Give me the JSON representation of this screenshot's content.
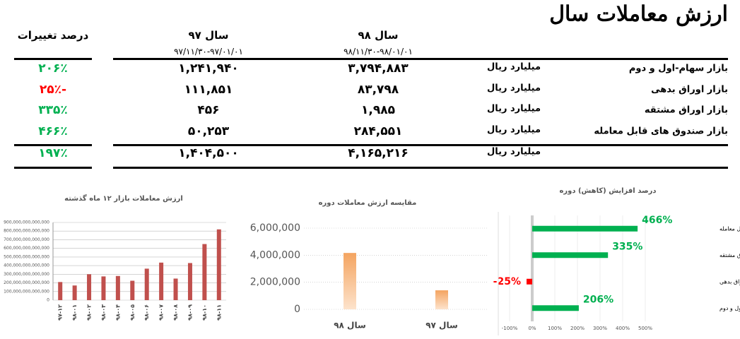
{
  "title": "ارزش معاملات سال",
  "table": {
    "headers": [
      {
        "label": "سال ۹۸",
        "range": "۹۸/۱۱/۳۰-۹۸/۰۱/۰۱"
      },
      {
        "label": "سال ۹۷",
        "range": "۹۷/۱۱/۳۰-۹۷/۰۱/۰۱"
      },
      {
        "label": "درصد تغییرات"
      }
    ],
    "rows": [
      {
        "market": "بازار سهام-اول و دوم",
        "unit": "میلیارد ریال",
        "y98": "۳,۷۹۴,۸۸۳",
        "y97": "۱,۲۴۱,۹۴۰",
        "change": "۲۰۶٪",
        "change_color": "#00b050"
      },
      {
        "market": "بازار اوراق بدهی",
        "unit": "میلیارد ریال",
        "y98": "۸۳,۷۹۸",
        "y97": "۱۱۱,۸۵۱",
        "change": "-۲۵٪",
        "change_color": "#ff0000"
      },
      {
        "market": "بازار اوراق مشتقه",
        "unit": "میلیارد ریال",
        "y98": "۱,۹۸۵",
        "y97": "۴۵۶",
        "change": "۳۳۵٪",
        "change_color": "#00b050"
      },
      {
        "market": "بازار صندوق های قابل معامله",
        "unit": "میلیارد ریال",
        "y98": "۲۸۴,۵۵۱",
        "y97": "۵۰,۲۵۳",
        "change": "۴۶۶٪",
        "change_color": "#00b050"
      }
    ],
    "total": {
      "unit": "میلیارد ریال",
      "y98": "۴,۱۶۵,۲۱۶",
      "y97": "۱,۴۰۴,۵۰۰",
      "change": "۱۹۷٪",
      "change_color": "#00b050"
    }
  },
  "chart_data": [
    {
      "type": "bar",
      "title": "ارزش معاملات بازار ۱۲ ماه گذشته",
      "categories": [
        "۹۷-۱۲",
        "۹۸-۰۱",
        "۹۸-۰۲",
        "۹۸-۰۳",
        "۹۸-۰۴",
        "۹۸-۰۵",
        "۹۸-۰۶",
        "۹۸-۰۷",
        "۹۸-۰۸",
        "۹۸-۰۹",
        "۹۸-۱۰",
        "۹۸-۱۱"
      ],
      "values": [
        210000000000000,
        170000000000000,
        300000000000000,
        275000000000000,
        280000000000000,
        225000000000000,
        365000000000000,
        435000000000000,
        250000000000000,
        430000000000000,
        650000000000000,
        820000000000000
      ],
      "color": "#c0504d",
      "ylim": [
        0,
        900000000000000
      ],
      "yticks": [
        0,
        {
          "value": 100000000000000,
          "label": "100,000,000,000,000"
        },
        {
          "value": 200000000000000,
          "label": "200,000,000,000,000"
        },
        {
          "value": 300000000000000,
          "label": "300,000,000,000,000"
        },
        {
          "value": 400000000000000,
          "label": "400,000,000,000,000"
        },
        {
          "value": 500000000000000,
          "label": "500,000,000,000,000"
        },
        {
          "value": 600000000000000,
          "label": "600,000,000,000,000"
        },
        {
          "value": 700000000000000,
          "label": "700,000,000,000,000"
        },
        {
          "value": 800000000000000,
          "label": "800,000,000,000,000"
        },
        {
          "value": 900000000000000,
          "label": "900,000,000,000,000"
        }
      ],
      "grid": true
    },
    {
      "type": "bar",
      "title": "مقایسه ارزش معاملات دوره",
      "categories": [
        "سال ۹۸",
        "سال ۹۷"
      ],
      "values": [
        4165216,
        1404500
      ],
      "color": "#f4a460",
      "ylim": [
        0,
        6000000
      ],
      "yticks": [
        0,
        {
          "value": 2000000,
          "label": "2,000,000"
        },
        {
          "value": 4000000,
          "label": "4,000,000"
        },
        {
          "value": 6000000,
          "label": "6,000,000"
        }
      ],
      "grid": true
    },
    {
      "type": "hbar",
      "title": "درصد افزایش (کاهش) دوره",
      "categories": [
        "بازار صندوق های قابل معامله",
        "بازار اوراق مشتقه",
        "بازار اوراق بدهی",
        "بازار سهام-اول و دوم"
      ],
      "values": [
        466,
        335,
        -25,
        206
      ],
      "value_labels": [
        "466%",
        "335%",
        "-25%",
        "206%"
      ],
      "colors": [
        "#00b050",
        "#00b050",
        "#ff0000",
        "#00b050"
      ],
      "xlim": [
        -100,
        500
      ],
      "xticks": [
        {
          "value": -100,
          "label": "-100%"
        },
        {
          "value": 0,
          "label": "0%"
        },
        {
          "value": 100,
          "label": "100%"
        },
        {
          "value": 200,
          "label": "200%"
        },
        {
          "value": 300,
          "label": "300%"
        },
        {
          "value": 400,
          "label": "400%"
        },
        {
          "value": 500,
          "label": "500%"
        }
      ],
      "grid": true
    }
  ]
}
